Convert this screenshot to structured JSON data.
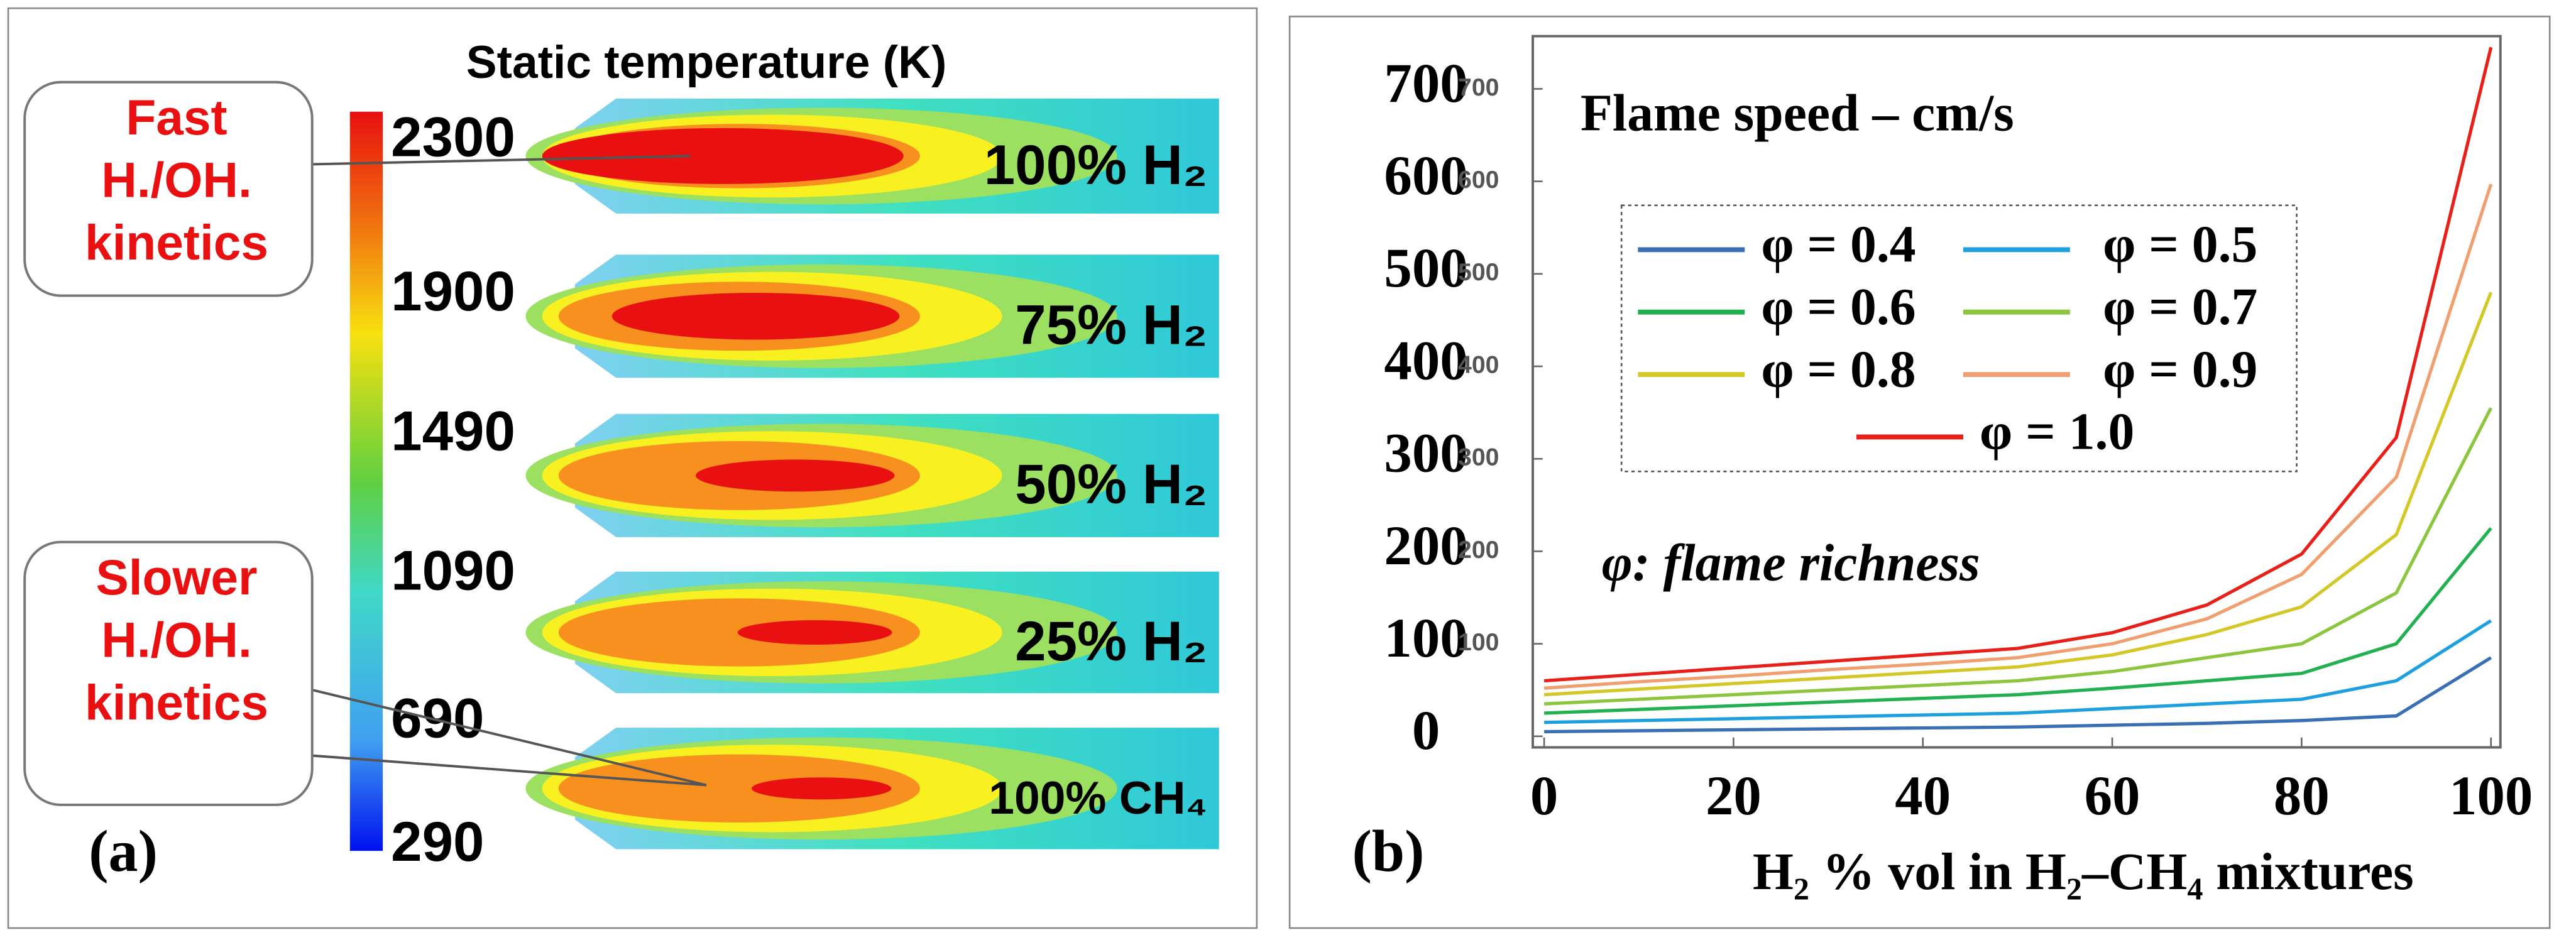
{
  "panel_a": {
    "title": "Static temperature (K)",
    "colorbar_ticks": [
      2300,
      1900,
      1490,
      1090,
      690,
      290
    ],
    "cases": [
      "100% H₂",
      "75% H₂",
      "50% H₂",
      "25% H₂",
      "100% CH₄"
    ],
    "callouts": [
      [
        "Fast",
        "H./OH.",
        "kinetics"
      ],
      [
        "Slower",
        "H./OH.",
        "kinetics"
      ]
    ],
    "label": "(a)"
  },
  "chart_data": {
    "type": "line",
    "annotation": "Flame speed – cm/s",
    "note": "φ: flame richness",
    "x_label": "H₂ % vol in H₂–CH₄ mixtures",
    "panel_label": "(b)",
    "x": [
      0,
      10,
      20,
      30,
      40,
      50,
      60,
      70,
      80,
      90,
      100
    ],
    "xlim": [
      -1.2,
      101
    ],
    "xticks": [
      0,
      20,
      40,
      60,
      80,
      100
    ],
    "ylim": [
      -12,
      757
    ],
    "yticks": [
      0,
      100,
      200,
      300,
      400,
      500,
      600,
      700
    ],
    "series": [
      {
        "name": "φ = 0.4",
        "color": "#3a6fb5",
        "values": [
          5,
          6,
          7,
          8,
          9,
          10,
          12,
          14,
          17,
          22,
          85
        ]
      },
      {
        "name": "φ = 0.5",
        "color": "#1ea0e0",
        "values": [
          15,
          17,
          19,
          21,
          23,
          25,
          30,
          35,
          40,
          60,
          125
        ]
      },
      {
        "name": "φ = 0.6",
        "color": "#22b050",
        "values": [
          25,
          29,
          33,
          37,
          41,
          45,
          52,
          60,
          68,
          100,
          225
        ]
      },
      {
        "name": "φ = 0.7",
        "color": "#8cc63f",
        "values": [
          35,
          40,
          45,
          50,
          55,
          60,
          70,
          85,
          100,
          155,
          355
        ]
      },
      {
        "name": "φ = 0.8",
        "color": "#d4c828",
        "values": [
          45,
          51,
          57,
          63,
          69,
          75,
          88,
          110,
          140,
          218,
          480
        ]
      },
      {
        "name": "φ = 0.9",
        "color": "#f0a070",
        "values": [
          52,
          59,
          65,
          72,
          78,
          85,
          100,
          127,
          175,
          280,
          597
        ]
      },
      {
        "name": "φ = 1.0",
        "color": "#e8201a",
        "values": [
          60,
          67,
          74,
          81,
          88,
          95,
          112,
          142,
          197,
          323,
          745
        ]
      }
    ]
  }
}
